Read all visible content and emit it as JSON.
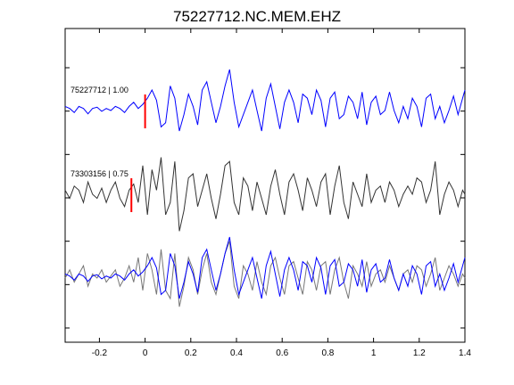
{
  "chart_data": {
    "type": "line",
    "title": "75227712.NC.MEM.EHZ",
    "xlim": [
      -0.35,
      1.4
    ],
    "x_ticks": [
      -0.2,
      0,
      0.2,
      0.4,
      0.6,
      0.8,
      1,
      1.2,
      1.4
    ],
    "x_tick_labels": [
      "-0.2",
      "0",
      "0.2",
      "0.4",
      "0.6",
      "0.8",
      "1",
      "1.2",
      "1.4"
    ],
    "y_tick_count": 7,
    "grid": false,
    "traces": [
      {
        "label": "75227712 | 1.00",
        "color": "#0000ff",
        "pick_time": 0.0,
        "pick_color": "#ff0000",
        "x": [
          -0.35,
          -0.33,
          -0.31,
          -0.29,
          -0.27,
          -0.25,
          -0.23,
          -0.21,
          -0.19,
          -0.17,
          -0.15,
          -0.13,
          -0.11,
          -0.09,
          -0.07,
          -0.05,
          -0.03,
          -0.01,
          0.01,
          0.03,
          0.05,
          0.07,
          0.09,
          0.11,
          0.13,
          0.15,
          0.17,
          0.19,
          0.21,
          0.23,
          0.25,
          0.27,
          0.29,
          0.31,
          0.33,
          0.35,
          0.37,
          0.39,
          0.41,
          0.43,
          0.45,
          0.47,
          0.49,
          0.51,
          0.53,
          0.55,
          0.57,
          0.59,
          0.61,
          0.63,
          0.65,
          0.67,
          0.69,
          0.71,
          0.73,
          0.75,
          0.77,
          0.79,
          0.81,
          0.83,
          0.85,
          0.87,
          0.89,
          0.91,
          0.93,
          0.95,
          0.97,
          0.99,
          1.01,
          1.03,
          1.05,
          1.07,
          1.09,
          1.11,
          1.13,
          1.15,
          1.17,
          1.19,
          1.21,
          1.23,
          1.25,
          1.27,
          1.29,
          1.31,
          1.33,
          1.35,
          1.37,
          1.39,
          1.4
        ],
        "y": [
          0.1,
          0.05,
          -0.05,
          0.1,
          0.05,
          -0.08,
          0.05,
          0.08,
          -0.02,
          0.05,
          0.0,
          0.1,
          0.05,
          -0.05,
          0.1,
          0.2,
          0.05,
          0.15,
          0.3,
          0.5,
          0.25,
          -0.4,
          -0.3,
          0.6,
          0.3,
          -0.5,
          -0.1,
          0.4,
          0.1,
          -0.35,
          0.5,
          0.7,
          0.2,
          -0.3,
          0.1,
          0.6,
          1.0,
          0.2,
          -0.4,
          -0.1,
          0.2,
          0.5,
          0.0,
          -0.5,
          0.3,
          0.65,
          0.1,
          -0.45,
          0.2,
          0.5,
          0.2,
          -0.3,
          0.4,
          0.3,
          -0.1,
          0.5,
          0.25,
          -0.4,
          0.3,
          0.45,
          -0.2,
          -0.1,
          0.35,
          0.2,
          -0.2,
          0.45,
          -0.35,
          0.2,
          0.35,
          -0.1,
          0.0,
          0.45,
          0.0,
          -0.3,
          0.1,
          -0.2,
          0.3,
          0.1,
          -0.4,
          0.3,
          0.4,
          -0.2,
          0.1,
          -0.3,
          0.0,
          0.35,
          -0.1,
          0.3,
          0.5
        ]
      },
      {
        "label": "73303156 | 0.75",
        "color": "#333333",
        "pick_time": -0.06,
        "pick_color": "#ff0000",
        "x": [
          -0.35,
          -0.33,
          -0.31,
          -0.29,
          -0.27,
          -0.25,
          -0.23,
          -0.21,
          -0.19,
          -0.17,
          -0.15,
          -0.13,
          -0.11,
          -0.09,
          -0.07,
          -0.05,
          -0.03,
          -0.01,
          0.01,
          0.03,
          0.05,
          0.07,
          0.09,
          0.11,
          0.13,
          0.15,
          0.17,
          0.19,
          0.21,
          0.23,
          0.25,
          0.27,
          0.29,
          0.31,
          0.33,
          0.35,
          0.37,
          0.39,
          0.41,
          0.43,
          0.45,
          0.47,
          0.49,
          0.51,
          0.53,
          0.55,
          0.57,
          0.59,
          0.61,
          0.63,
          0.65,
          0.67,
          0.69,
          0.71,
          0.73,
          0.75,
          0.77,
          0.79,
          0.81,
          0.83,
          0.85,
          0.87,
          0.89,
          0.91,
          0.93,
          0.95,
          0.97,
          0.99,
          1.01,
          1.03,
          1.05,
          1.07,
          1.09,
          1.11,
          1.13,
          1.15,
          1.17,
          1.19,
          1.21,
          1.23,
          1.25,
          1.27,
          1.29,
          1.31,
          1.33,
          1.35,
          1.37,
          1.39,
          1.4
        ],
        "y": [
          0.1,
          -0.1,
          0.2,
          0.1,
          -0.2,
          0.3,
          0.0,
          -0.1,
          0.15,
          -0.2,
          0.1,
          0.3,
          -0.1,
          -0.3,
          0.1,
          0.25,
          -0.2,
          0.7,
          -0.5,
          0.6,
          0.1,
          0.9,
          -0.5,
          -0.2,
          0.8,
          -0.9,
          -0.4,
          0.4,
          0.5,
          -0.3,
          0.1,
          0.5,
          -0.1,
          -0.6,
          0.0,
          0.7,
          0.8,
          -0.2,
          -0.5,
          0.4,
          0.2,
          -0.4,
          0.3,
          -0.1,
          -0.5,
          0.2,
          0.6,
          0.0,
          -0.5,
          0.3,
          0.5,
          0.1,
          -0.4,
          0.4,
          0.1,
          -0.3,
          0.3,
          0.5,
          -0.5,
          0.2,
          0.7,
          -0.2,
          -0.6,
          0.3,
          0.0,
          -0.3,
          0.5,
          -0.2,
          0.1,
          0.2,
          -0.2,
          0.3,
          0.1,
          -0.3,
          0.0,
          0.2,
          0.0,
          0.4,
          0.3,
          -0.2,
          0.1,
          0.8,
          -0.5,
          0.0,
          0.3,
          0.1,
          -0.3,
          0.1,
          0.0
        ]
      },
      {
        "label": "",
        "color": "#777777",
        "overlay_color": "#0000ff",
        "pick_time": null,
        "x": [
          -0.35,
          -0.33,
          -0.31,
          -0.29,
          -0.27,
          -0.25,
          -0.23,
          -0.21,
          -0.19,
          -0.17,
          -0.15,
          -0.13,
          -0.11,
          -0.09,
          -0.07,
          -0.05,
          -0.03,
          -0.01,
          0.01,
          0.03,
          0.05,
          0.07,
          0.09,
          0.11,
          0.13,
          0.15,
          0.17,
          0.19,
          0.21,
          0.23,
          0.25,
          0.27,
          0.29,
          0.31,
          0.33,
          0.35,
          0.37,
          0.39,
          0.41,
          0.43,
          0.45,
          0.47,
          0.49,
          0.51,
          0.53,
          0.55,
          0.57,
          0.59,
          0.61,
          0.63,
          0.65,
          0.67,
          0.69,
          0.71,
          0.73,
          0.75,
          0.77,
          0.79,
          0.81,
          0.83,
          0.85,
          0.87,
          0.89,
          0.91,
          0.93,
          0.95,
          0.97,
          0.99,
          1.01,
          1.03,
          1.05,
          1.07,
          1.09,
          1.11,
          1.13,
          1.15,
          1.17,
          1.19,
          1.21,
          1.23,
          1.25,
          1.27,
          1.29,
          1.31,
          1.33,
          1.35,
          1.37,
          1.39,
          1.4
        ],
        "y": [
          0.0,
          0.2,
          -0.1,
          0.1,
          0.3,
          -0.2,
          0.1,
          0.0,
          0.2,
          -0.1,
          0.05,
          0.2,
          -0.2,
          0.0,
          0.3,
          -0.1,
          0.5,
          -0.3,
          0.6,
          0.2,
          -0.4,
          0.7,
          -0.3,
          -0.5,
          0.6,
          -0.7,
          -0.2,
          0.5,
          0.2,
          -0.4,
          0.2,
          0.6,
          -0.1,
          -0.4,
          0.1,
          0.6,
          0.9,
          -0.2,
          -0.5,
          0.3,
          0.1,
          -0.3,
          0.4,
          -0.1,
          -0.4,
          0.3,
          0.5,
          0.0,
          -0.4,
          0.3,
          0.4,
          0.0,
          -0.4,
          0.4,
          0.2,
          -0.3,
          0.3,
          0.4,
          -0.4,
          0.2,
          0.5,
          -0.1,
          -0.5,
          0.3,
          0.1,
          -0.2,
          0.4,
          -0.2,
          0.1,
          0.2,
          -0.1,
          0.3,
          0.0,
          -0.3,
          0.1,
          0.2,
          -0.1,
          0.3,
          0.2,
          -0.2,
          0.1,
          0.5,
          -0.3,
          0.0,
          0.3,
          0.1,
          -0.2,
          0.1,
          0.0
        ]
      }
    ]
  }
}
